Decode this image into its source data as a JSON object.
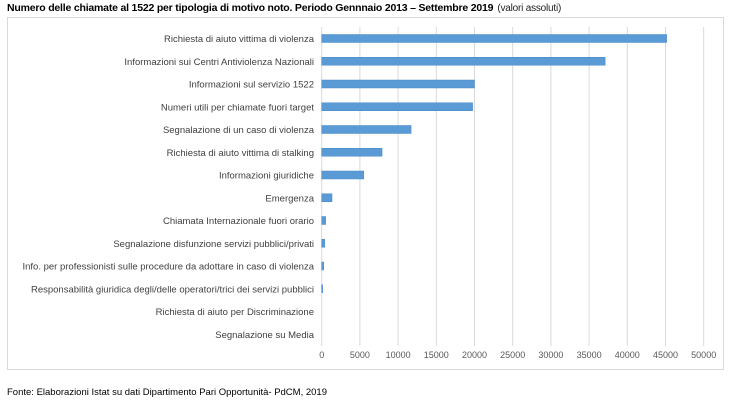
{
  "chart_data": {
    "type": "bar",
    "orientation": "horizontal",
    "title": "Numero delle chiamate al 1522 per tipologia di motivo noto. Periodo Gennnaio 2013 – Settembre 2019",
    "subtitle": "(valori assoluti)",
    "categories": [
      "Richiesta di aiuto vittima di violenza",
      "Informazioni sui Centri Antiviolenza Nazionali",
      "Informazioni sul servizio 1522",
      "Numeri utili per chiamate fuori target",
      "Segnalazione di un caso di violenza",
      "Richiesta di aiuto vittima di stalking",
      "Informazioni giuridiche",
      "Emergenza",
      "Chiamata Internazionale fuori orario",
      "Segnalazione disfunzione servizi pubblici/privati",
      "Info. per professionisti sulle procedure da adottare in caso di violenza",
      "Responsabilità giuridica degli/delle operatori/trici dei servizi pubblici",
      "Richiesta di aiuto per Discriminazione",
      "Segnalazione su Media"
    ],
    "values": [
      45150,
      37100,
      20000,
      19750,
      11700,
      7900,
      5500,
      1350,
      520,
      390,
      260,
      130,
      10,
      5
    ],
    "xlim": [
      0,
      50000
    ],
    "xticks": [
      0,
      5000,
      10000,
      15000,
      20000,
      25000,
      30000,
      35000,
      40000,
      45000,
      50000
    ],
    "grid": "vertical",
    "bar_color": "#5b9bd5",
    "grid_color": "#d9d9d9"
  },
  "source": "Fonte: Elaborazioni Istat su dati Dipartimento Pari Opportunità- PdCM, 2019"
}
